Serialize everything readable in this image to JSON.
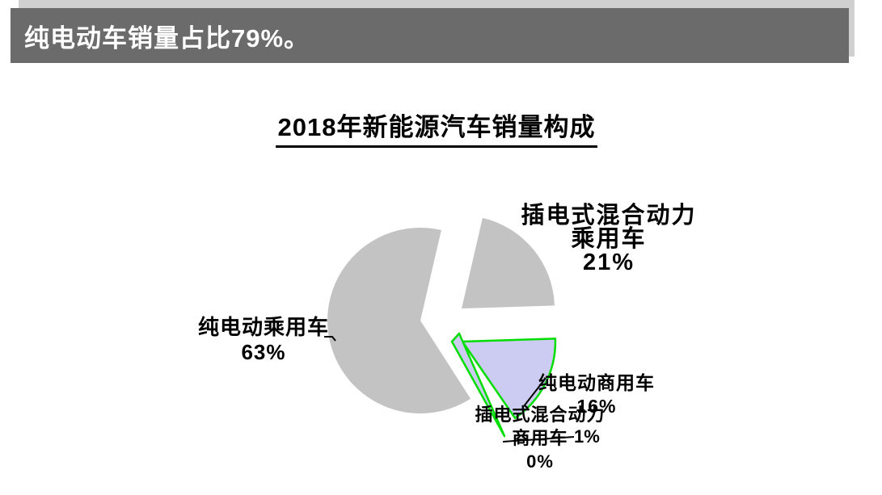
{
  "banner": {
    "text": "纯电动车销量占比79%。"
  },
  "title": {
    "text": "2018年新能源汽车销量构成"
  },
  "chart_data": {
    "type": "pie",
    "title": "2018年新能源汽车销量构成",
    "legend": "none",
    "value_unit": "percent of 2018 new-energy-vehicle sales",
    "slices": [
      {
        "key": "phev_passenger",
        "name": "插电式混合动力乘用车",
        "value": 21,
        "display": "21%",
        "color": "#c3c3c3"
      },
      {
        "key": "bev_commercial",
        "name": "纯电动商用车",
        "value": 16,
        "display": "16%",
        "color": "#ccccf2",
        "border_color": "#00dd00"
      },
      {
        "key": "phev_commercial",
        "name": "插电式混合动力商用车",
        "value": 0.5,
        "display": "0%",
        "color": "#ccccf2",
        "border_color": "#00dd00"
      },
      {
        "key": "bev_passenger",
        "name": "纯电动乘用车",
        "value": 63,
        "display": "63%",
        "color": "#c3c3c3"
      }
    ],
    "extra_label": "1%"
  },
  "labels": {
    "phev_passenger": {
      "l1": "插电式混合动力",
      "l2": "乘用车",
      "l3": "21%"
    },
    "bev_passenger": {
      "l1": "纯电动乘用车",
      "l2": "63%"
    },
    "bev_commercial": {
      "l1": "纯电动商用车",
      "l2": "16%"
    },
    "phev_commercial": {
      "l1": "插电式混合动力",
      "l2": "商用车",
      "l3": "0%"
    },
    "stray": {
      "l1": "1%"
    }
  },
  "colors": {
    "banner_bg": "#6b6b6b",
    "banner_backing": "#d0d0d0",
    "banner_text": "#ffffff",
    "slice_gray": "#c3c3c3",
    "slice_lavender": "#ccccf2",
    "selection_green": "#00dd00",
    "label_text": "#000000"
  }
}
